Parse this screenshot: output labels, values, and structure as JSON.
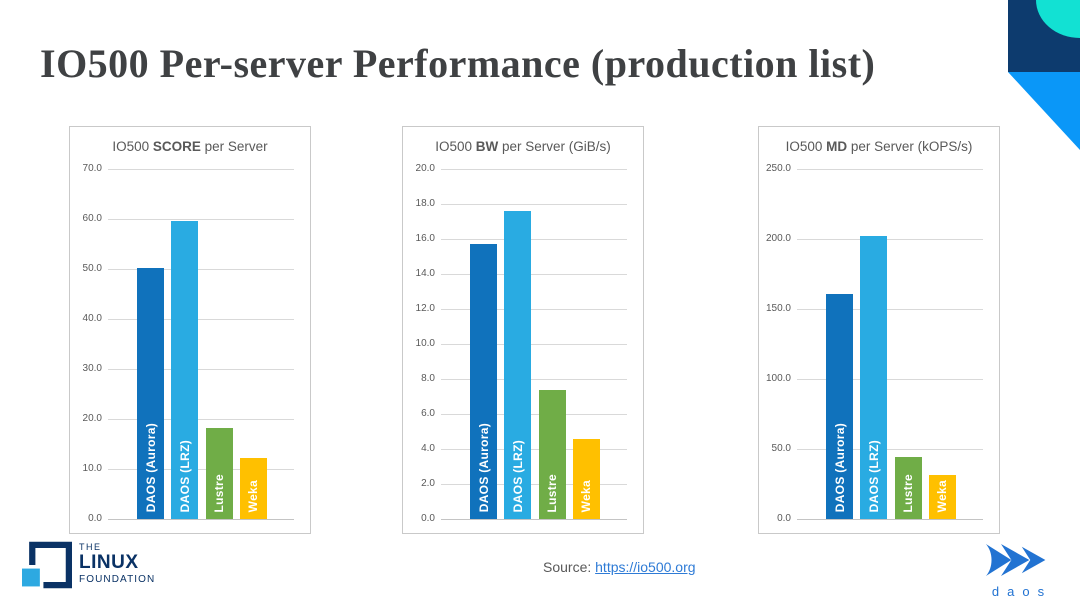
{
  "slide": {
    "title": "IO500 Per-server Performance (production list)"
  },
  "colors": {
    "bars": [
      "#1072bc",
      "#29abe2",
      "#70ad47",
      "#ffc000"
    ],
    "corner_navy": "#0d3b6e",
    "corner_teal": "#12e1d3",
    "corner_blue": "#0a97f8",
    "title_gray": "#3f4143",
    "chart_text_gray": "#595959",
    "gridline_gray": "#d9d9d9",
    "link_blue": "#2e7bd6",
    "lf_navy": "#0a3265",
    "lf_light_blue": "#2da9e1",
    "daos_blue": "#2273d2"
  },
  "chart_data": [
    {
      "type": "bar",
      "title": "IO500 SCORE per Server",
      "title_prefix": "IO500",
      "title_bold": "SCORE",
      "title_suffix": "per Server",
      "categories": [
        "DAOS (Aurora)",
        "DAOS (LRZ)",
        "Lustre",
        "Weka"
      ],
      "values": [
        50.2,
        59.7,
        18.3,
        12.2
      ],
      "ylim": [
        0,
        70
      ],
      "ytick_step": 10,
      "grid": true,
      "bar_labels_inside": true
    },
    {
      "type": "bar",
      "title": "IO500 BW per Server (GiB/s)",
      "title_prefix": "IO500",
      "title_bold": "BW",
      "title_suffix": "per Server (GiB/s)",
      "categories": [
        "DAOS (Aurora)",
        "DAOS (LRZ)",
        "Lustre",
        "Weka"
      ],
      "values": [
        15.7,
        17.6,
        7.4,
        4.6
      ],
      "ylim": [
        0,
        20
      ],
      "ytick_step": 2,
      "grid": true,
      "bar_labels_inside": true
    },
    {
      "type": "bar",
      "title": "IO500 MD per Server (kOPS/s)",
      "title_prefix": "IO500",
      "title_bold": "MD",
      "title_suffix": "per Server (kOPS/s)",
      "categories": [
        "DAOS (Aurora)",
        "DAOS (LRZ)",
        "Lustre",
        "Weka"
      ],
      "values": [
        160.5,
        202.0,
        44.5,
        31.5
      ],
      "ylim": [
        0,
        250
      ],
      "ytick_step": 50,
      "grid": true,
      "bar_labels_inside": true
    }
  ],
  "footer": {
    "source_label": "Source:",
    "source_url": "https://io500.org",
    "linux_foundation": {
      "line1": "THE",
      "line2": "LINUX",
      "line3": "FOUNDATION"
    },
    "daos_label": "daos"
  }
}
